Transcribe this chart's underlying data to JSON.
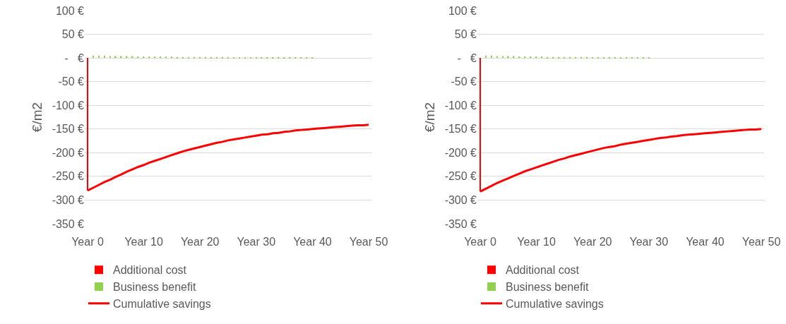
{
  "chart_data": [
    {
      "type": "bar",
      "ylabel": "€/m2",
      "stacked": true,
      "grid": "y",
      "legend": "bottom",
      "ylim": [
        -350,
        100
      ],
      "yticks": [
        {
          "value": 100,
          "label": "100 €"
        },
        {
          "value": 50,
          "label": "50 €"
        },
        {
          "value": 0,
          "label": "-   €"
        },
        {
          "value": -50,
          "label": "-50 €"
        },
        {
          "value": -100,
          "label": "-100 €"
        },
        {
          "value": -150,
          "label": "-150 €"
        },
        {
          "value": -200,
          "label": "-200 €"
        },
        {
          "value": -250,
          "label": "-250 €"
        },
        {
          "value": -300,
          "label": "-300 €"
        },
        {
          "value": -350,
          "label": "-350 €"
        }
      ],
      "categories": [
        "Year 0",
        null,
        null,
        null,
        null,
        null,
        null,
        null,
        null,
        null,
        "Year 10",
        null,
        null,
        null,
        null,
        null,
        null,
        null,
        null,
        null,
        "Year 20",
        null,
        null,
        null,
        null,
        null,
        null,
        null,
        null,
        null,
        "Year 30",
        null,
        null,
        null,
        null,
        null,
        null,
        null,
        null,
        null,
        "Year 40",
        null,
        null,
        null,
        null,
        null,
        null,
        null,
        null,
        null,
        "Year 50"
      ],
      "series": [
        {
          "name": "Additional cost",
          "color": "#ff0000",
          "values": [
            -280,
            null,
            null,
            null,
            null,
            null,
            null,
            null,
            null,
            null,
            null,
            null,
            null,
            null,
            null,
            null,
            null,
            null,
            null,
            null,
            null,
            null,
            null,
            null,
            null,
            null,
            null,
            null,
            null,
            null,
            null,
            null,
            null,
            null,
            null,
            null,
            null,
            null,
            null,
            null,
            null,
            null,
            null,
            null,
            null,
            null,
            null,
            null,
            null,
            null,
            null
          ]
        },
        {
          "name": "Business benefit",
          "color": "#92d050",
          "values": [
            null,
            5,
            5,
            5,
            4,
            4,
            4,
            4,
            4,
            3,
            3,
            3,
            3,
            3,
            3,
            3,
            2,
            2,
            2,
            2,
            2,
            2,
            2,
            2,
            2,
            2,
            1,
            1,
            1,
            1,
            1,
            1,
            1,
            1,
            1,
            1,
            1,
            1,
            1,
            1,
            1,
            0,
            0,
            0,
            0,
            0,
            0,
            0,
            0,
            0,
            0
          ]
        },
        {
          "name": "Cumulative savings",
          "type": "line",
          "color": "#ff0000",
          "values": [
            -280,
            -274,
            -268,
            -262,
            -257,
            -251,
            -246,
            -240,
            -235,
            -230,
            -226,
            -221,
            -217,
            -213,
            -209,
            -205,
            -201,
            -197,
            -194,
            -191,
            -188,
            -185,
            -182,
            -179,
            -177,
            -174,
            -172,
            -170,
            -168,
            -166,
            -164,
            -162,
            -161,
            -159,
            -158,
            -156,
            -155,
            -153,
            -152,
            -151,
            -150,
            -149,
            -148,
            -147,
            -146,
            -145,
            -144,
            -143,
            -142,
            -142,
            -141
          ]
        }
      ]
    },
    {
      "type": "bar",
      "ylabel": "€/m2",
      "stacked": true,
      "grid": "y",
      "legend": "bottom",
      "ylim": [
        -350,
        100
      ],
      "yticks": [
        {
          "value": 100,
          "label": "100 €"
        },
        {
          "value": 50,
          "label": "50 €"
        },
        {
          "value": 0,
          "label": "-   €"
        },
        {
          "value": -50,
          "label": "-50 €"
        },
        {
          "value": -100,
          "label": "-100 €"
        },
        {
          "value": -150,
          "label": "-150 €"
        },
        {
          "value": -200,
          "label": "-200 €"
        },
        {
          "value": -250,
          "label": "-250 €"
        },
        {
          "value": -300,
          "label": "-300 €"
        },
        {
          "value": -350,
          "label": "-350 €"
        }
      ],
      "categories": [
        "Year 0",
        null,
        null,
        null,
        null,
        null,
        null,
        null,
        null,
        null,
        "Year 10",
        null,
        null,
        null,
        null,
        null,
        null,
        null,
        null,
        null,
        "Year 20",
        null,
        null,
        null,
        null,
        null,
        null,
        null,
        null,
        null,
        "Year 30",
        null,
        null,
        null,
        null,
        null,
        null,
        null,
        null,
        null,
        "Year 40",
        null,
        null,
        null,
        null,
        null,
        null,
        null,
        null,
        null,
        "Year 50"
      ],
      "series": [
        {
          "name": "Additional cost",
          "color": "#ff0000",
          "values": [
            -282,
            null,
            null,
            null,
            null,
            null,
            null,
            null,
            null,
            null,
            null,
            null,
            null,
            null,
            null,
            null,
            null,
            null,
            null,
            null,
            null,
            null,
            null,
            null,
            null,
            null,
            null,
            null,
            null,
            null,
            null,
            null,
            null,
            null,
            null,
            null,
            null,
            null,
            null,
            null,
            null,
            null,
            null,
            null,
            null,
            null,
            null,
            null,
            null,
            null,
            null
          ]
        },
        {
          "name": "Business benefit",
          "color": "#92d050",
          "values": [
            null,
            5,
            5,
            4,
            4,
            4,
            4,
            3,
            3,
            3,
            3,
            3,
            2,
            2,
            2,
            2,
            2,
            2,
            2,
            2,
            1,
            1,
            1,
            1,
            1,
            1,
            1,
            1,
            1,
            1,
            1,
            0,
            0,
            0,
            0,
            0,
            0,
            0,
            0,
            0,
            0,
            0,
            0,
            0,
            0,
            0,
            0,
            0,
            0,
            0,
            0
          ]
        },
        {
          "name": "Cumulative savings",
          "type": "line",
          "color": "#ff0000",
          "values": [
            -282,
            -276,
            -270,
            -264,
            -259,
            -254,
            -249,
            -244,
            -239,
            -235,
            -231,
            -227,
            -223,
            -219,
            -215,
            -212,
            -208,
            -205,
            -202,
            -199,
            -196,
            -193,
            -190,
            -188,
            -186,
            -183,
            -181,
            -179,
            -177,
            -175,
            -173,
            -171,
            -169,
            -168,
            -166,
            -165,
            -163,
            -162,
            -161,
            -160,
            -159,
            -158,
            -157,
            -156,
            -155,
            -154,
            -153,
            -152,
            -151,
            -151,
            -150
          ]
        }
      ]
    }
  ]
}
